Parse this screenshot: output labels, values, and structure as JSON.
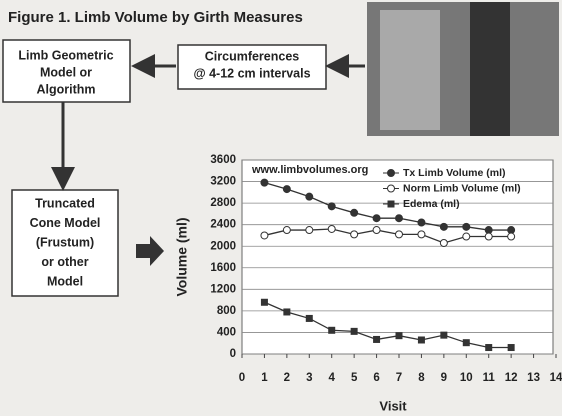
{
  "figure": {
    "title": "Figure 1. Limb Volume by Girth Measures",
    "box_model": {
      "lines": [
        "Limb Geometric",
        "Model or",
        "Algorithm"
      ]
    },
    "box_circ": {
      "lines": [
        "Circumferences",
        "@ 4-12 cm intervals"
      ]
    },
    "box_cone": {
      "lines": [
        "Truncated",
        "Cone Model",
        "(Frustum)",
        "or other",
        "Model"
      ]
    }
  },
  "chart_data": {
    "type": "line",
    "annotation": "www.limbvolumes.org",
    "xlabel": "Visit",
    "ylabel": "Volume (ml)",
    "x": [
      1,
      2,
      3,
      4,
      5,
      6,
      7,
      8,
      9,
      10,
      11,
      12
    ],
    "xlim": [
      0,
      14
    ],
    "xticks": [
      0,
      1,
      2,
      3,
      4,
      5,
      6,
      7,
      8,
      9,
      10,
      11,
      12,
      13,
      14
    ],
    "ylim": [
      0,
      3600
    ],
    "yticks": [
      0,
      400,
      800,
      1200,
      1600,
      2000,
      2400,
      2800,
      3200,
      3600
    ],
    "grid": true,
    "legend": "top-right",
    "series": [
      {
        "name": "Tx Limb Volume (ml)",
        "color": "#333333",
        "marker": "circle",
        "values": [
          3180,
          3060,
          2920,
          2740,
          2620,
          2520,
          2520,
          2440,
          2360,
          2360,
          2300,
          2300
        ]
      },
      {
        "name": "Norm Limb Volume (ml)",
        "color": "#333333",
        "marker": "open-circle",
        "values": [
          2200,
          2300,
          2300,
          2320,
          2220,
          2300,
          2220,
          2220,
          2060,
          2180,
          2180,
          2180
        ]
      },
      {
        "name": "Edema (ml)",
        "color": "#333333",
        "marker": "square",
        "values": [
          960,
          780,
          660,
          440,
          420,
          270,
          340,
          260,
          350,
          210,
          120,
          120
        ]
      }
    ]
  }
}
